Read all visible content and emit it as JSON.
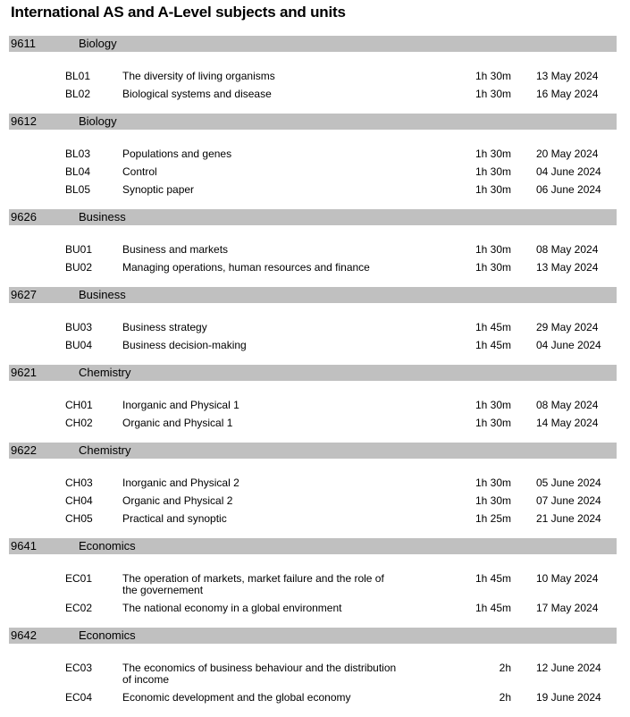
{
  "title": "International AS and A-Level subjects and units",
  "subjects": [
    {
      "code": "9611",
      "name": "Biology",
      "units": [
        {
          "code": "BL01",
          "title": "The diversity of living organisms",
          "duration": "1h 30m",
          "date": "13 May 2024"
        },
        {
          "code": "BL02",
          "title": "Biological systems and disease",
          "duration": "1h 30m",
          "date": "16 May 2024"
        }
      ]
    },
    {
      "code": "9612",
      "name": "Biology",
      "units": [
        {
          "code": "BL03",
          "title": "Populations and genes",
          "duration": "1h 30m",
          "date": "20 May 2024"
        },
        {
          "code": "BL04",
          "title": "Control",
          "duration": "1h 30m",
          "date": "04 June 2024"
        },
        {
          "code": "BL05",
          "title": "Synoptic paper",
          "duration": "1h 30m",
          "date": "06 June 2024"
        }
      ]
    },
    {
      "code": "9626",
      "name": "Business",
      "units": [
        {
          "code": "BU01",
          "title": "Business and markets",
          "duration": "1h 30m",
          "date": "08 May 2024"
        },
        {
          "code": "BU02",
          "title": "Managing operations, human resources and finance",
          "duration": "1h 30m",
          "date": "13 May 2024"
        }
      ]
    },
    {
      "code": "9627",
      "name": "Business",
      "units": [
        {
          "code": "BU03",
          "title": "Business strategy",
          "duration": "1h 45m",
          "date": "29 May 2024"
        },
        {
          "code": "BU04",
          "title": "Business decision-making",
          "duration": "1h 45m",
          "date": "04 June 2024"
        }
      ]
    },
    {
      "code": "9621",
      "name": "Chemistry",
      "units": [
        {
          "code": "CH01",
          "title": "Inorganic and Physical 1",
          "duration": "1h 30m",
          "date": "08 May 2024"
        },
        {
          "code": "CH02",
          "title": "Organic and Physical 1",
          "duration": "1h 30m",
          "date": "14 May 2024"
        }
      ]
    },
    {
      "code": "9622",
      "name": "Chemistry",
      "units": [
        {
          "code": "CH03",
          "title": "Inorganic and Physical 2",
          "duration": "1h 30m",
          "date": "05 June 2024"
        },
        {
          "code": "CH04",
          "title": "Organic and Physical 2",
          "duration": "1h 30m",
          "date": "07 June 2024"
        },
        {
          "code": "CH05",
          "title": "Practical and synoptic",
          "duration": "1h 25m",
          "date": "21 June 2024"
        }
      ]
    },
    {
      "code": "9641",
      "name": "Economics",
      "units": [
        {
          "code": "EC01",
          "title": "The operation of markets, market failure and the role of the governement",
          "duration": "1h 45m",
          "date": "10 May 2024"
        },
        {
          "code": "EC02",
          "title": "The national economy in a global environment",
          "duration": "1h 45m",
          "date": "17 May 2024"
        }
      ]
    },
    {
      "code": "9642",
      "name": "Economics",
      "units": [
        {
          "code": "EC03",
          "title": "The economics of business behaviour and the distribution of income",
          "duration": "2h",
          "date": "12 June 2024"
        },
        {
          "code": "EC04",
          "title": "Economic development and the global economy",
          "duration": "2h",
          "date": "19 June 2024"
        }
      ]
    }
  ]
}
